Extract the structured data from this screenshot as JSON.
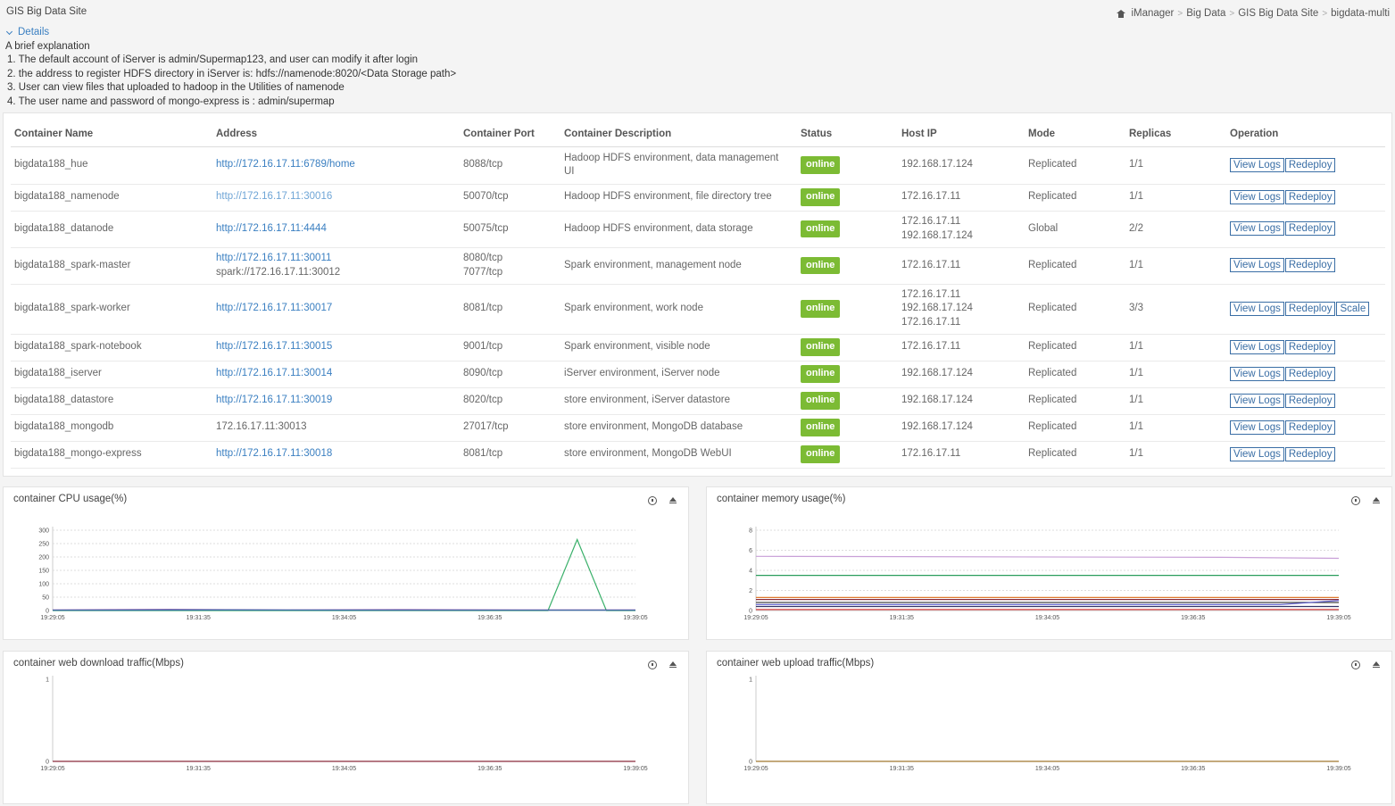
{
  "page": {
    "title": "GIS Big Data Site"
  },
  "breadcrumb": [
    {
      "label": "iManager",
      "icon": "home-icon"
    },
    {
      "label": "Big Data"
    },
    {
      "label": "GIS Big Data Site"
    },
    {
      "label": "bigdata-multi"
    }
  ],
  "details": {
    "toggle_label": "Details",
    "heading": "A brief explanation",
    "items": [
      " 1. The default account of iServer is admin/Supermap123, and user can modify it after login",
      " 2. the address to register HDFS directory in iServer is: hdfs://namenode:8020/<Data Storage path>",
      "3. User can view files that uploaded to hadoop in the Utilities of namenode",
      " 4. The user name and password of mongo-express is : admin/supermap"
    ]
  },
  "table": {
    "headers": [
      "Container Name",
      "Address",
      "Container Port",
      "Container Description",
      "Status",
      "Host IP",
      "Mode",
      "Replicas",
      "Operation"
    ],
    "rows": [
      {
        "name": "bigdata188_hue",
        "address": [
          "http://172.16.17.11:6789/home"
        ],
        "address_link": true,
        "port": [
          "8088/tcp"
        ],
        "desc": "Hadoop HDFS environment, data management UI",
        "status": "online",
        "host": [
          "192.168.17.124"
        ],
        "mode": "Replicated",
        "replicas": "1/1",
        "ops": [
          "View Logs",
          "Redeploy"
        ]
      },
      {
        "name": "bigdata188_namenode",
        "address": [
          "http://172.16.17.11:30016"
        ],
        "address_link": true,
        "address_dim": true,
        "port": [
          "50070/tcp"
        ],
        "desc": "Hadoop HDFS environment, file directory tree",
        "status": "online",
        "host": [
          "172.16.17.11"
        ],
        "mode": "Replicated",
        "replicas": "1/1",
        "ops": [
          "View Logs",
          "Redeploy"
        ]
      },
      {
        "name": "bigdata188_datanode",
        "address": [
          "http://172.16.17.11:4444"
        ],
        "address_link": true,
        "port": [
          "50075/tcp"
        ],
        "desc": "Hadoop HDFS environment, data storage",
        "status": "online",
        "host": [
          "172.16.17.11",
          "192.168.17.124"
        ],
        "mode": "Global",
        "replicas": "2/2",
        "ops": [
          "View Logs",
          "Redeploy"
        ]
      },
      {
        "name": "bigdata188_spark-master",
        "address": [
          "http://172.16.17.11:30011",
          "spark://172.16.17.11:30012"
        ],
        "address_link": true,
        "port": [
          "8080/tcp",
          "7077/tcp"
        ],
        "desc": "Spark environment, management node",
        "status": "online",
        "host": [
          "172.16.17.11"
        ],
        "mode": "Replicated",
        "replicas": "1/1",
        "ops": [
          "View Logs",
          "Redeploy"
        ]
      },
      {
        "name": "bigdata188_spark-worker",
        "address": [
          "http://172.16.17.11:30017"
        ],
        "address_link": true,
        "port": [
          "8081/tcp"
        ],
        "desc": "Spark environment, work node",
        "status": "online",
        "host": [
          "172.16.17.11",
          "192.168.17.124",
          "172.16.17.11"
        ],
        "mode": "Replicated",
        "replicas": "3/3",
        "ops": [
          "View Logs",
          "Redeploy",
          "Scale"
        ]
      },
      {
        "name": "bigdata188_spark-notebook",
        "address": [
          "http://172.16.17.11:30015"
        ],
        "address_link": true,
        "port": [
          "9001/tcp"
        ],
        "desc": "Spark environment, visible node",
        "status": "online",
        "host": [
          "172.16.17.11"
        ],
        "mode": "Replicated",
        "replicas": "1/1",
        "ops": [
          "View Logs",
          "Redeploy"
        ]
      },
      {
        "name": "bigdata188_iserver",
        "address": [
          "http://172.16.17.11:30014"
        ],
        "address_link": true,
        "port": [
          "8090/tcp"
        ],
        "desc": "iServer environment, iServer node",
        "status": "online",
        "host": [
          "192.168.17.124"
        ],
        "mode": "Replicated",
        "replicas": "1/1",
        "ops": [
          "View Logs",
          "Redeploy"
        ]
      },
      {
        "name": "bigdata188_datastore",
        "address": [
          "http://172.16.17.11:30019"
        ],
        "address_link": true,
        "port": [
          "8020/tcp"
        ],
        "desc": "store environment, iServer datastore",
        "status": "online",
        "host": [
          "192.168.17.124"
        ],
        "mode": "Replicated",
        "replicas": "1/1",
        "ops": [
          "View Logs",
          "Redeploy"
        ]
      },
      {
        "name": "bigdata188_mongodb",
        "address": [
          "172.16.17.11:30013"
        ],
        "address_link": false,
        "port": [
          "27017/tcp"
        ],
        "desc": "store environment, MongoDB database",
        "status": "online",
        "host": [
          "192.168.17.124"
        ],
        "mode": "Replicated",
        "replicas": "1/1",
        "ops": [
          "View Logs",
          "Redeploy"
        ]
      },
      {
        "name": "bigdata188_mongo-express",
        "address": [
          "http://172.16.17.11:30018"
        ],
        "address_link": true,
        "port": [
          "8081/tcp"
        ],
        "desc": "store environment, MongoDB WebUI",
        "status": "online",
        "host": [
          "172.16.17.11"
        ],
        "mode": "Replicated",
        "replicas": "1/1",
        "ops": [
          "View Logs",
          "Redeploy"
        ]
      }
    ]
  },
  "colors": {
    "online": "#7cbb34",
    "link": "#3a7fc1"
  },
  "chart_data": [
    {
      "type": "line",
      "title": "container CPU usage(%)",
      "x_ticks": [
        "19:29:05",
        "19:31:35",
        "19:34:05",
        "19:36:35",
        "19:39:05"
      ],
      "y_ticks": [
        0,
        50,
        100,
        150,
        200,
        250,
        300
      ],
      "ylim": [
        0,
        300
      ],
      "grid": true,
      "series": [
        {
          "color": "#3ab06a",
          "points": [
            [
              0,
              0
            ],
            [
              0.85,
              0
            ],
            [
              0.9,
              265
            ],
            [
              0.95,
              0
            ],
            [
              1,
              0
            ]
          ]
        },
        {
          "color": "#7b3fa0",
          "points": [
            [
              0,
              2
            ],
            [
              0.2,
              4
            ],
            [
              0.4,
              2
            ],
            [
              0.6,
              3
            ],
            [
              0.8,
              2
            ],
            [
              1,
              2
            ]
          ]
        },
        {
          "color": "#3a6ea5",
          "points": [
            [
              0,
              1
            ],
            [
              0.3,
              2
            ],
            [
              0.6,
              1
            ],
            [
              1,
              1
            ]
          ]
        }
      ]
    },
    {
      "type": "line",
      "title": "container memory usage(%)",
      "x_ticks": [
        "19:29:05",
        "19:31:35",
        "19:34:05",
        "19:36:35",
        "19:39:05"
      ],
      "y_ticks": [
        0,
        2,
        4,
        6,
        8
      ],
      "ylim": [
        0,
        8
      ],
      "grid": true,
      "series": [
        {
          "color": "#c9a0d8",
          "points": [
            [
              0,
              5.4
            ],
            [
              0.8,
              5.3
            ],
            [
              1,
              5.2
            ]
          ]
        },
        {
          "color": "#2a9d5c",
          "points": [
            [
              0,
              3.5
            ],
            [
              1,
              3.5
            ]
          ]
        },
        {
          "color": "#e07b2f",
          "points": [
            [
              0,
              1.3
            ],
            [
              1,
              1.3
            ]
          ]
        },
        {
          "color": "#8b2b3b",
          "points": [
            [
              0,
              1.1
            ],
            [
              1,
              1.1
            ]
          ]
        },
        {
          "color": "#444444",
          "points": [
            [
              0,
              0.8
            ],
            [
              1,
              0.8
            ]
          ]
        },
        {
          "color": "#5a5acd",
          "points": [
            [
              0,
              0.6
            ],
            [
              0.9,
              0.6
            ],
            [
              1,
              1.0
            ]
          ]
        },
        {
          "color": "#333366",
          "points": [
            [
              0,
              0.4
            ],
            [
              1,
              0.4
            ]
          ]
        },
        {
          "color": "#d94040",
          "points": [
            [
              0,
              0.1
            ],
            [
              1,
              0.1
            ]
          ]
        }
      ]
    },
    {
      "type": "line",
      "title": "container web download traffic(Mbps)",
      "x_ticks": [
        "19:29:05",
        "19:31:35",
        "19:34:05",
        "19:36:35",
        "19:39:05"
      ],
      "y_ticks": [
        0,
        1
      ],
      "ylim": [
        0,
        1
      ],
      "grid": false,
      "series": [
        {
          "color": "#8b2b3b",
          "points": [
            [
              0,
              0
            ],
            [
              1,
              0
            ]
          ]
        }
      ]
    },
    {
      "type": "line",
      "title": "container web upload traffic(Mbps)",
      "x_ticks": [
        "19:29:05",
        "19:31:35",
        "19:34:05",
        "19:36:35",
        "19:39:05"
      ],
      "y_ticks": [
        0,
        1
      ],
      "ylim": [
        0,
        1
      ],
      "grid": false,
      "series": [
        {
          "color": "#a0782e",
          "points": [
            [
              0,
              0
            ],
            [
              1,
              0
            ]
          ]
        }
      ]
    }
  ]
}
